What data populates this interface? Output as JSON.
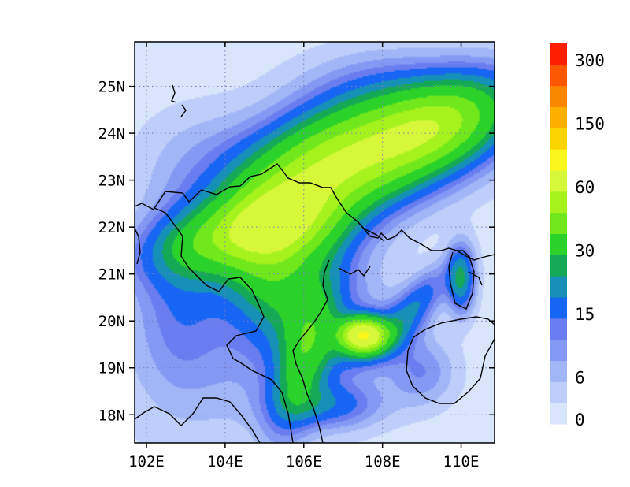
{
  "chart_data": {
    "type": "heatmap",
    "title": "",
    "xlabel": "",
    "ylabel": "",
    "xlim": [
      101.7,
      110.85
    ],
    "ylim": [
      17.4,
      25.95
    ],
    "x_ticks": [
      {
        "value": 102,
        "label": "102E"
      },
      {
        "value": 104,
        "label": "104E"
      },
      {
        "value": 106,
        "label": "106E"
      },
      {
        "value": 108,
        "label": "108E"
      },
      {
        "value": 110,
        "label": "110E"
      }
    ],
    "y_ticks": [
      {
        "value": 18,
        "label": "18N"
      },
      {
        "value": 19,
        "label": "19N"
      },
      {
        "value": 20,
        "label": "20N"
      },
      {
        "value": 21,
        "label": "21N"
      },
      {
        "value": 22,
        "label": "22N"
      },
      {
        "value": 23,
        "label": "23N"
      },
      {
        "value": 24,
        "label": "24N"
      },
      {
        "value": 25,
        "label": "25N"
      }
    ],
    "grid": true,
    "colorbar": {
      "placement": "right",
      "levels": [
        0,
        3,
        6,
        9,
        12,
        15,
        20,
        25,
        30,
        40,
        50,
        60,
        80,
        100,
        150,
        200,
        250,
        300
      ],
      "labels": [
        {
          "level_index": 0,
          "text": "0"
        },
        {
          "level_index": 2,
          "text": "6"
        },
        {
          "level_index": 5,
          "text": "15"
        },
        {
          "level_index": 8,
          "text": "30"
        },
        {
          "level_index": 11,
          "text": "60"
        },
        {
          "level_index": 14,
          "text": "150"
        },
        {
          "level_index": 17,
          "text": "300"
        }
      ],
      "colors": [
        "#d9e5fb",
        "#bdcefa",
        "#a0b6f7",
        "#8399f3",
        "#6a7df0",
        "#1766f3",
        "#1690b6",
        "#15a955",
        "#2bd22a",
        "#71e81c",
        "#a5f21d",
        "#d6f839",
        "#f9f71b",
        "#fcd500",
        "#fbb000",
        "#fb8600",
        "#fa5700",
        "#fb1e00"
      ]
    },
    "fields": [
      {
        "lon": 106.2,
        "lat": 23.0,
        "sx": 1.6,
        "sy": 0.9,
        "rot": 0.45,
        "value": 30
      },
      {
        "lon": 107.8,
        "lat": 23.6,
        "sx": 2.2,
        "sy": 0.8,
        "rot": 0.25,
        "value": 34
      },
      {
        "lon": 109.5,
        "lat": 24.2,
        "sx": 1.3,
        "sy": 0.6,
        "rot": 0.3,
        "value": 30
      },
      {
        "lon": 104.0,
        "lat": 21.8,
        "sx": 1.4,
        "sy": 0.5,
        "rot": 0.2,
        "value": 25
      },
      {
        "lon": 105.5,
        "lat": 22.1,
        "sx": 1.0,
        "sy": 0.6,
        "rot": 0.0,
        "value": 22
      },
      {
        "lon": 105.3,
        "lat": 20.7,
        "sx": 0.7,
        "sy": 0.9,
        "rot": 0.6,
        "value": 14
      },
      {
        "lon": 106.0,
        "lat": 19.2,
        "sx": 0.45,
        "sy": 1.1,
        "rot": -0.35,
        "value": 24
      },
      {
        "lon": 107.5,
        "lat": 19.7,
        "sx": 0.4,
        "sy": 0.25,
        "rot": 0.0,
        "value": 60
      },
      {
        "lon": 107.8,
        "lat": 19.6,
        "sx": 0.7,
        "sy": 0.35,
        "rot": 0.3,
        "value": 16
      },
      {
        "lon": 108.9,
        "lat": 20.4,
        "sx": 0.7,
        "sy": 0.3,
        "rot": 0.75,
        "value": 16
      },
      {
        "lon": 110.0,
        "lat": 20.9,
        "sx": 0.25,
        "sy": 0.5,
        "rot": 0.0,
        "value": 24
      },
      {
        "lon": 109.0,
        "lat": 18.9,
        "sx": 0.6,
        "sy": 0.5,
        "rot": 0.0,
        "value": 10
      },
      {
        "lon": 104.0,
        "lat": 19.7,
        "sx": 2.0,
        "sy": 1.6,
        "rot": 0.0,
        "value": 8
      },
      {
        "lon": 106.5,
        "lat": 20.0,
        "sx": 1.2,
        "sy": 1.0,
        "rot": 0.0,
        "value": 9
      },
      {
        "lon": 102.8,
        "lat": 20.6,
        "sx": 0.7,
        "sy": 1.4,
        "rot": 0.0,
        "value": 7
      },
      {
        "lon": 103.5,
        "lat": 23.5,
        "sx": 1.2,
        "sy": 0.8,
        "rot": 0.0,
        "value": 5
      },
      {
        "lon": 108.0,
        "lat": 25.0,
        "sx": 1.5,
        "sy": 0.6,
        "rot": 0.0,
        "value": 6
      },
      {
        "lon": 106.7,
        "lat": 18.2,
        "sx": 0.9,
        "sy": 0.35,
        "rot": 0.0,
        "value": 14
      },
      {
        "lon": 105.0,
        "lat": 21.3,
        "sx": 1.2,
        "sy": 0.7,
        "rot": 0.0,
        "value": 10
      }
    ]
  }
}
